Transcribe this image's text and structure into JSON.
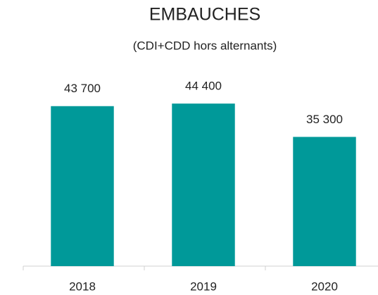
{
  "chart_data": {
    "type": "bar",
    "title": "EMBAUCHES",
    "subtitle": "(CDI+CDD hors alternants)",
    "categories": [
      "2018",
      "2019",
      "2020"
    ],
    "values": [
      43700,
      44400,
      35300
    ],
    "value_labels": [
      "43 700",
      "44 400",
      "35 300"
    ],
    "color": "#009999",
    "ylim": [
      0,
      50000
    ]
  }
}
